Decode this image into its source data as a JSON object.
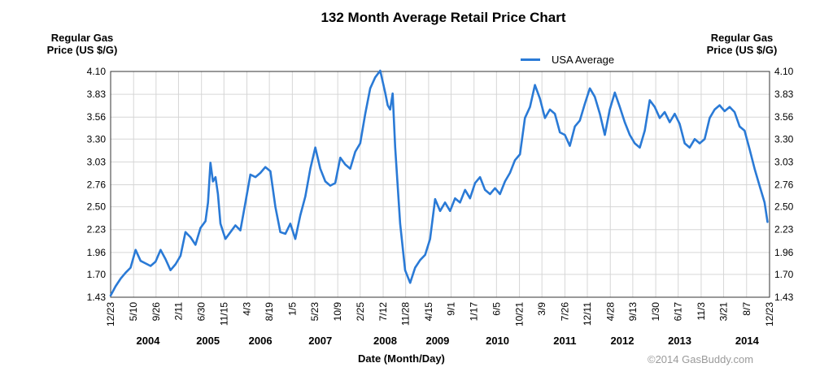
{
  "chart_data": {
    "type": "line",
    "title": "132 Month Average Retail Price Chart",
    "ylabel_left": "Regular Gas Price (US $/G)",
    "ylabel_left_lines": [
      "Regular Gas",
      "Price (US $/G)"
    ],
    "ylabel_right_lines": [
      "Regular Gas",
      "Price (US $/G)"
    ],
    "xlabel": "Date (Month/Day)",
    "credit": "©2014 GasBuddy.com",
    "legend_position": "top-right",
    "grid": true,
    "line_color": "#2a7ad6",
    "ylim": [
      1.43,
      4.1
    ],
    "yticks": [
      "4.10",
      "3.83",
      "3.56",
      "3.30",
      "3.03",
      "2.76",
      "2.50",
      "2.23",
      "1.96",
      "1.70",
      "1.43"
    ],
    "xlim": [
      0,
      132
    ],
    "x_tick_labels": [
      {
        "label": "12/23",
        "x": 0
      },
      {
        "label": "5/10",
        "x": 4.6
      },
      {
        "label": "9/26",
        "x": 9.1
      },
      {
        "label": "2/11",
        "x": 13.6
      },
      {
        "label": "6/30",
        "x": 18.2
      },
      {
        "label": "11/15",
        "x": 22.7
      },
      {
        "label": "4/3",
        "x": 27.3
      },
      {
        "label": "8/19",
        "x": 31.8
      },
      {
        "label": "1/5",
        "x": 36.4
      },
      {
        "label": "5/23",
        "x": 40.9
      },
      {
        "label": "10/9",
        "x": 45.5
      },
      {
        "label": "2/25",
        "x": 50.0
      },
      {
        "label": "7/12",
        "x": 54.6
      },
      {
        "label": "11/28",
        "x": 59.1
      },
      {
        "label": "4/15",
        "x": 63.7
      },
      {
        "label": "9/1",
        "x": 68.2
      },
      {
        "label": "1/17",
        "x": 72.8
      },
      {
        "label": "6/5",
        "x": 77.3
      },
      {
        "label": "10/21",
        "x": 81.9
      },
      {
        "label": "3/9",
        "x": 86.4
      },
      {
        "label": "7/26",
        "x": 91.0
      },
      {
        "label": "12/11",
        "x": 95.5
      },
      {
        "label": "4/28",
        "x": 100.1
      },
      {
        "label": "9/13",
        "x": 104.6
      },
      {
        "label": "1/30",
        "x": 109.2
      },
      {
        "label": "6/17",
        "x": 113.7
      },
      {
        "label": "11/3",
        "x": 118.3
      },
      {
        "label": "3/21",
        "x": 122.8
      },
      {
        "label": "8/7",
        "x": 127.4
      },
      {
        "label": "12/23",
        "x": 132
      }
    ],
    "year_labels": [
      {
        "label": "2004",
        "x": 7.5
      },
      {
        "label": "2005",
        "x": 19.5
      },
      {
        "label": "2006",
        "x": 30.0
      },
      {
        "label": "2007",
        "x": 42.0
      },
      {
        "label": "2008",
        "x": 55.0
      },
      {
        "label": "2009",
        "x": 65.5
      },
      {
        "label": "2010",
        "x": 77.5
      },
      {
        "label": "2011",
        "x": 91.0
      },
      {
        "label": "2012",
        "x": 102.5
      },
      {
        "label": "2013",
        "x": 114.0
      },
      {
        "label": "2014",
        "x": 127.5
      }
    ],
    "series": [
      {
        "name": "USA Average",
        "points": [
          [
            0,
            1.45
          ],
          [
            1,
            1.56
          ],
          [
            2,
            1.65
          ],
          [
            3,
            1.72
          ],
          [
            4,
            1.78
          ],
          [
            5,
            1.99
          ],
          [
            6,
            1.86
          ],
          [
            7,
            1.83
          ],
          [
            8,
            1.8
          ],
          [
            9,
            1.85
          ],
          [
            10,
            1.99
          ],
          [
            11,
            1.88
          ],
          [
            12,
            1.75
          ],
          [
            13,
            1.82
          ],
          [
            14,
            1.92
          ],
          [
            15,
            2.2
          ],
          [
            16,
            2.14
          ],
          [
            17,
            2.05
          ],
          [
            18,
            2.25
          ],
          [
            19,
            2.33
          ],
          [
            19.5,
            2.55
          ],
          [
            20,
            3.02
          ],
          [
            20.5,
            2.8
          ],
          [
            21,
            2.85
          ],
          [
            21.5,
            2.65
          ],
          [
            22,
            2.3
          ],
          [
            23,
            2.12
          ],
          [
            24,
            2.2
          ],
          [
            25,
            2.28
          ],
          [
            26,
            2.22
          ],
          [
            27,
            2.55
          ],
          [
            28,
            2.88
          ],
          [
            29,
            2.85
          ],
          [
            30,
            2.9
          ],
          [
            31,
            2.97
          ],
          [
            32,
            2.92
          ],
          [
            33,
            2.5
          ],
          [
            34,
            2.2
          ],
          [
            35,
            2.18
          ],
          [
            36,
            2.3
          ],
          [
            37,
            2.12
          ],
          [
            38,
            2.4
          ],
          [
            39,
            2.62
          ],
          [
            40,
            2.95
          ],
          [
            41,
            3.2
          ],
          [
            42,
            2.95
          ],
          [
            43,
            2.8
          ],
          [
            44,
            2.75
          ],
          [
            45,
            2.78
          ],
          [
            46,
            3.08
          ],
          [
            47,
            3.0
          ],
          [
            48,
            2.95
          ],
          [
            49,
            3.15
          ],
          [
            50,
            3.25
          ],
          [
            51,
            3.6
          ],
          [
            52,
            3.9
          ],
          [
            53,
            4.03
          ],
          [
            54,
            4.11
          ],
          [
            55,
            3.85
          ],
          [
            55.5,
            3.7
          ],
          [
            56,
            3.65
          ],
          [
            56.5,
            3.84
          ],
          [
            57,
            3.2
          ],
          [
            58,
            2.3
          ],
          [
            59,
            1.75
          ],
          [
            60,
            1.6
          ],
          [
            61,
            1.78
          ],
          [
            62,
            1.87
          ],
          [
            63,
            1.93
          ],
          [
            64,
            2.12
          ],
          [
            65,
            2.59
          ],
          [
            66,
            2.45
          ],
          [
            67,
            2.55
          ],
          [
            68,
            2.45
          ],
          [
            69,
            2.6
          ],
          [
            70,
            2.55
          ],
          [
            71,
            2.7
          ],
          [
            72,
            2.6
          ],
          [
            73,
            2.78
          ],
          [
            74,
            2.85
          ],
          [
            75,
            2.7
          ],
          [
            76,
            2.65
          ],
          [
            77,
            2.72
          ],
          [
            78,
            2.65
          ],
          [
            79,
            2.8
          ],
          [
            80,
            2.9
          ],
          [
            81,
            3.05
          ],
          [
            82,
            3.12
          ],
          [
            83,
            3.55
          ],
          [
            84,
            3.68
          ],
          [
            85,
            3.94
          ],
          [
            86,
            3.78
          ],
          [
            87,
            3.55
          ],
          [
            88,
            3.65
          ],
          [
            89,
            3.6
          ],
          [
            90,
            3.38
          ],
          [
            91,
            3.35
          ],
          [
            92,
            3.22
          ],
          [
            93,
            3.45
          ],
          [
            94,
            3.52
          ],
          [
            95,
            3.72
          ],
          [
            96,
            3.9
          ],
          [
            97,
            3.8
          ],
          [
            98,
            3.6
          ],
          [
            99,
            3.35
          ],
          [
            100,
            3.65
          ],
          [
            101,
            3.85
          ],
          [
            102,
            3.68
          ],
          [
            103,
            3.5
          ],
          [
            104,
            3.35
          ],
          [
            105,
            3.25
          ],
          [
            106,
            3.2
          ],
          [
            107,
            3.4
          ],
          [
            108,
            3.76
          ],
          [
            109,
            3.68
          ],
          [
            110,
            3.55
          ],
          [
            111,
            3.62
          ],
          [
            112,
            3.5
          ],
          [
            113,
            3.6
          ],
          [
            114,
            3.48
          ],
          [
            115,
            3.25
          ],
          [
            116,
            3.2
          ],
          [
            117,
            3.3
          ],
          [
            118,
            3.25
          ],
          [
            119,
            3.3
          ],
          [
            120,
            3.55
          ],
          [
            121,
            3.65
          ],
          [
            122,
            3.7
          ],
          [
            123,
            3.63
          ],
          [
            124,
            3.68
          ],
          [
            125,
            3.62
          ],
          [
            126,
            3.45
          ],
          [
            127,
            3.4
          ],
          [
            128,
            3.18
          ],
          [
            129,
            2.95
          ],
          [
            130,
            2.75
          ],
          [
            131,
            2.55
          ],
          [
            131.6,
            2.32
          ]
        ]
      }
    ]
  }
}
